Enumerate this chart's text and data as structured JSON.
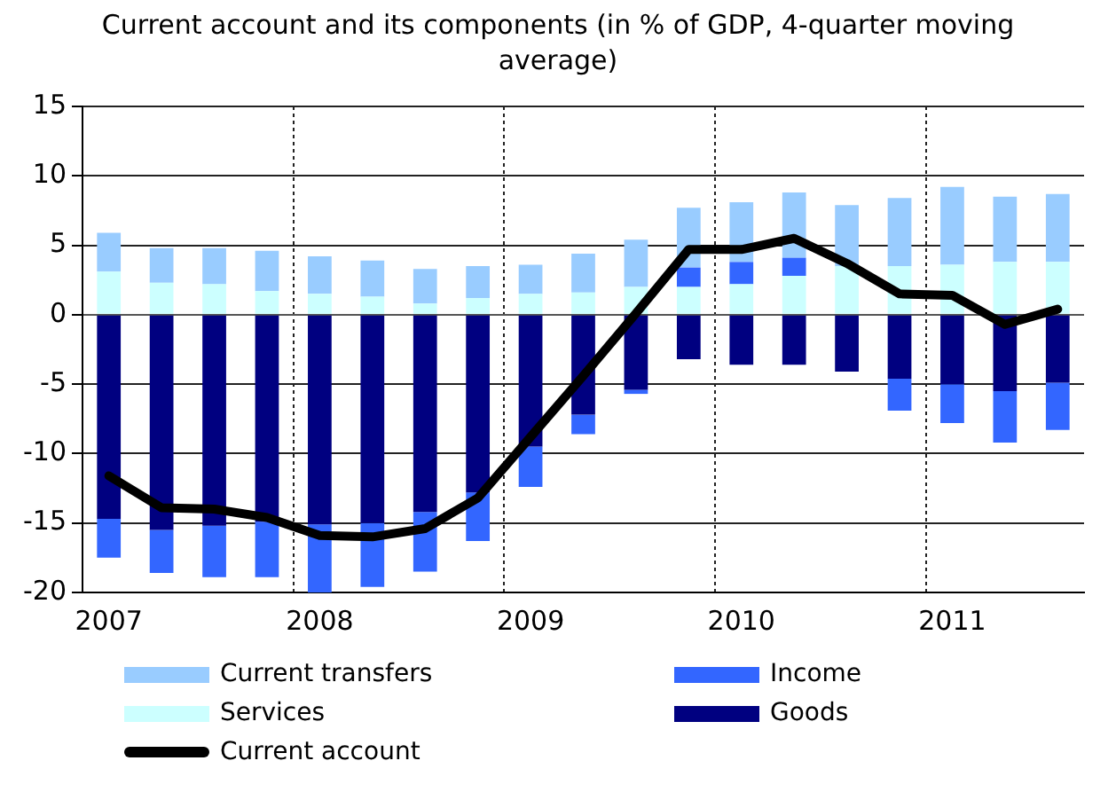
{
  "chart_data": {
    "type": "bar",
    "title": "Current account and its components (in % of GDP, 4-quarter moving average)",
    "categories": [
      "2007",
      null,
      null,
      null,
      "2008",
      null,
      null,
      null,
      "2009",
      null,
      null,
      null,
      "2010",
      null,
      null,
      null,
      "2011",
      null,
      null
    ],
    "stacked": true,
    "series": [
      {
        "name": "Services",
        "color": "#ccffff",
        "values": [
          3.1,
          2.3,
          2.2,
          1.7,
          1.5,
          1.3,
          0.8,
          1.2,
          1.5,
          1.6,
          2.0,
          2.0,
          2.2,
          2.8,
          3.5,
          3.5,
          3.6,
          3.8,
          3.8
        ]
      },
      {
        "name": "Goods",
        "color": "#000080",
        "values": [
          -14.7,
          -15.5,
          -15.2,
          -14.9,
          -15.1,
          -15.0,
          -14.2,
          -12.8,
          -9.5,
          -7.2,
          -5.4,
          -3.2,
          -3.6,
          -3.6,
          -4.1,
          -4.6,
          -5.0,
          -5.5,
          -4.9
        ]
      },
      {
        "name": "Income",
        "color": "#3366ff",
        "values": [
          -2.8,
          -3.1,
          -3.7,
          -4.0,
          -4.9,
          -4.6,
          -4.3,
          -3.5,
          -2.9,
          -1.4,
          -0.3,
          1.4,
          1.6,
          1.3,
          null,
          -2.3,
          -2.8,
          -3.7,
          -3.4
        ]
      },
      {
        "name": "Current transfers",
        "color": "#99ccff",
        "values": [
          2.8,
          2.5,
          2.6,
          2.9,
          2.7,
          2.6,
          2.5,
          2.3,
          2.1,
          2.8,
          3.4,
          4.3,
          4.3,
          4.7,
          4.4,
          4.9,
          5.6,
          4.7,
          4.9
        ]
      },
      {
        "name": "Current account",
        "type": "line",
        "color": "#000000",
        "values": [
          -11.6,
          -13.9,
          -14.0,
          -14.6,
          -15.9,
          -16.0,
          -15.4,
          -13.2,
          -8.8,
          -4.4,
          0.1,
          4.7,
          4.7,
          5.5,
          3.7,
          1.5,
          1.4,
          -0.7,
          0.4
        ]
      }
    ],
    "ylim": [
      -20,
      15
    ],
    "yticks": [
      -20,
      -15,
      -10,
      -5,
      0,
      5,
      10,
      15
    ],
    "grid": true,
    "legend": "bottom",
    "marker": "none"
  }
}
